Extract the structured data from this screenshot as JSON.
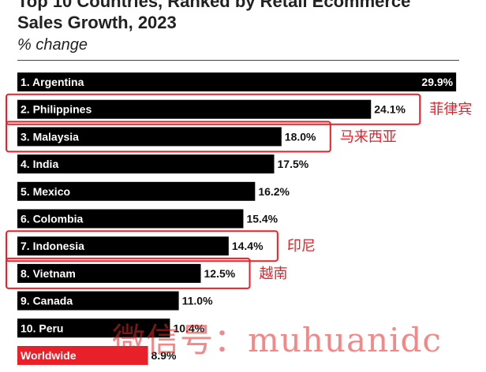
{
  "chart_data": {
    "type": "bar",
    "orientation": "horizontal",
    "title": "Top 10 Countries, Ranked by Retail Ecommerce\nSales Growth, 2023",
    "subtitle": "% change",
    "xlim": [
      0,
      30
    ],
    "grid": false,
    "categories": [
      "1. Argentina",
      "2. Philippines",
      "3. Malaysia",
      "4. India",
      "5. Mexico",
      "6. Colombia",
      "7. Indonesia",
      "8. Vietnam",
      "9. Canada",
      "10. Peru",
      "Worldwide"
    ],
    "values": [
      29.9,
      24.1,
      18.0,
      17.5,
      16.2,
      15.4,
      14.4,
      12.5,
      11.0,
      10.4,
      8.9
    ],
    "value_labels": [
      "29.9%",
      "24.1%",
      "18.0%",
      "17.5%",
      "16.2%",
      "15.4%",
      "14.4%",
      "12.5%",
      "11.0%",
      "10.4%",
      "8.9%"
    ],
    "bar_colors": [
      "#000000",
      "#000000",
      "#000000",
      "#000000",
      "#000000",
      "#000000",
      "#000000",
      "#000000",
      "#000000",
      "#000000",
      "#e8202a"
    ],
    "highlights": [
      {
        "index": 1,
        "annotation": "菲律宾"
      },
      {
        "index": 2,
        "annotation": "马来西亚"
      },
      {
        "index": 6,
        "annotation": "印尼"
      },
      {
        "index": 7,
        "annotation": "越南"
      }
    ],
    "highlight_color": "#e8202a"
  },
  "watermark": "微信号：muhuanidc"
}
